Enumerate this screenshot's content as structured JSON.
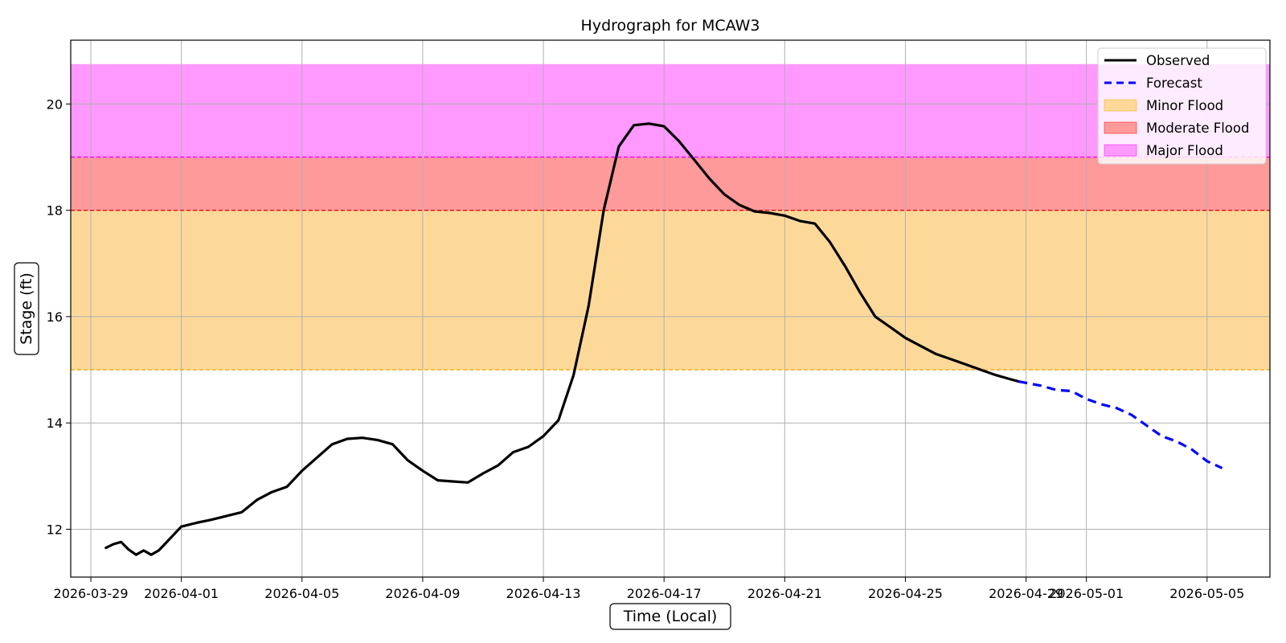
{
  "chart_data": {
    "type": "line",
    "title": "Hydrograph for MCAW3",
    "xlabel": "Time (Local)",
    "ylabel": "Stage (ft)",
    "xlim": [
      "2026-03-28T08:00",
      "2026-05-07T02:00"
    ],
    "ylim": [
      11.1,
      21.2
    ],
    "x_ticks": [
      "2026-03-29",
      "2026-04-01",
      "2026-04-05",
      "2026-04-09",
      "2026-04-13",
      "2026-04-17",
      "2026-04-21",
      "2026-04-25",
      "2026-04-29",
      "2026-05-01",
      "2026-05-05"
    ],
    "y_ticks": [
      12,
      14,
      16,
      18,
      20
    ],
    "grid": true,
    "legend_position": "top-right",
    "colors": {
      "observed": "#000000",
      "forecast": "#0000ff",
      "minor_fill": "#fdd999",
      "minor_line": "#ffa500",
      "moderate_fill": "#ff9a9a",
      "moderate_line": "#ff0000",
      "major_fill": "#ff99ff",
      "major_line": "#ff00ff",
      "grid": "#b0b0b0"
    },
    "flood_bands": [
      {
        "name": "Minor Flood",
        "from": 15.0,
        "to": 18.0,
        "fill": "#fdd999",
        "line": "#ffa500"
      },
      {
        "name": "Moderate Flood",
        "from": 18.0,
        "to": 19.0,
        "fill": "#ff9a9a",
        "line": "#ff0000"
      },
      {
        "name": "Major Flood",
        "from": 19.0,
        "to": 20.75,
        "fill": "#ff99ff",
        "line": "#ff00ff"
      }
    ],
    "series": [
      {
        "name": "Observed",
        "style": "solid",
        "x": [
          "2026-03-29T12:00",
          "2026-03-29T18:00",
          "2026-03-30T00:00",
          "2026-03-30T06:00",
          "2026-03-30T12:00",
          "2026-03-30T18:00",
          "2026-03-31T00:00",
          "2026-03-31T06:00",
          "2026-03-31T12:00",
          "2026-03-31T18:00",
          "2026-04-01T00:00",
          "2026-04-01T12:00",
          "2026-04-02T00:00",
          "2026-04-02T12:00",
          "2026-04-03T00:00",
          "2026-04-03T12:00",
          "2026-04-04T00:00",
          "2026-04-04T12:00",
          "2026-04-05T00:00",
          "2026-04-05T12:00",
          "2026-04-06T00:00",
          "2026-04-06T12:00",
          "2026-04-07T00:00",
          "2026-04-07T12:00",
          "2026-04-08T00:00",
          "2026-04-08T12:00",
          "2026-04-09T00:00",
          "2026-04-09T12:00",
          "2026-04-10T00:00",
          "2026-04-10T12:00",
          "2026-04-11T00:00",
          "2026-04-11T12:00",
          "2026-04-12T00:00",
          "2026-04-12T12:00",
          "2026-04-13T00:00",
          "2026-04-13T12:00",
          "2026-04-14T00:00",
          "2026-04-14T12:00",
          "2026-04-15T00:00",
          "2026-04-15T12:00",
          "2026-04-16T00:00",
          "2026-04-16T12:00",
          "2026-04-17T00:00",
          "2026-04-17T12:00",
          "2026-04-18T00:00",
          "2026-04-18T12:00",
          "2026-04-19T00:00",
          "2026-04-19T12:00",
          "2026-04-20T00:00",
          "2026-04-20T12:00",
          "2026-04-21T00:00",
          "2026-04-21T12:00",
          "2026-04-22T00:00",
          "2026-04-22T12:00",
          "2026-04-23T00:00",
          "2026-04-23T12:00",
          "2026-04-24T00:00",
          "2026-04-24T12:00",
          "2026-04-25T00:00",
          "2026-04-25T12:00",
          "2026-04-26T00:00",
          "2026-04-26T12:00",
          "2026-04-27T00:00",
          "2026-04-27T12:00",
          "2026-04-28T00:00",
          "2026-04-28T12:00",
          "2026-04-28T18:00"
        ],
        "y": [
          11.65,
          11.72,
          11.76,
          11.62,
          11.52,
          11.6,
          11.52,
          11.6,
          11.75,
          11.9,
          12.05,
          12.12,
          12.18,
          12.25,
          12.32,
          12.55,
          12.7,
          12.8,
          13.1,
          13.35,
          13.6,
          13.7,
          13.72,
          13.68,
          13.6,
          13.3,
          13.1,
          12.92,
          12.9,
          12.88,
          13.05,
          13.2,
          13.45,
          13.55,
          13.75,
          14.05,
          14.9,
          16.2,
          18.0,
          19.2,
          19.6,
          19.63,
          19.58,
          19.3,
          18.95,
          18.6,
          18.3,
          18.1,
          17.98,
          17.95,
          17.9,
          17.8,
          17.75,
          17.4,
          16.95,
          16.45,
          16.0,
          15.8,
          15.6,
          15.45,
          15.3,
          15.2,
          15.1,
          15.0,
          14.9,
          14.82,
          14.78
        ]
      },
      {
        "name": "Forecast",
        "style": "dashed",
        "x": [
          "2026-04-28T18:00",
          "2026-04-29T12:00",
          "2026-04-30T00:00",
          "2026-04-30T12:00",
          "2026-05-01T00:00",
          "2026-05-01T12:00",
          "2026-05-02T00:00",
          "2026-05-02T12:00",
          "2026-05-03T00:00",
          "2026-05-03T12:00",
          "2026-05-04T00:00",
          "2026-05-04T12:00",
          "2026-05-05T00:00",
          "2026-05-05T12:00"
        ],
        "y": [
          14.78,
          14.7,
          14.62,
          14.6,
          14.45,
          14.35,
          14.28,
          14.15,
          13.95,
          13.75,
          13.65,
          13.5,
          13.28,
          13.15
        ]
      }
    ],
    "legend": [
      "Observed",
      "Forecast",
      "Minor Flood",
      "Moderate Flood",
      "Major Flood"
    ]
  }
}
